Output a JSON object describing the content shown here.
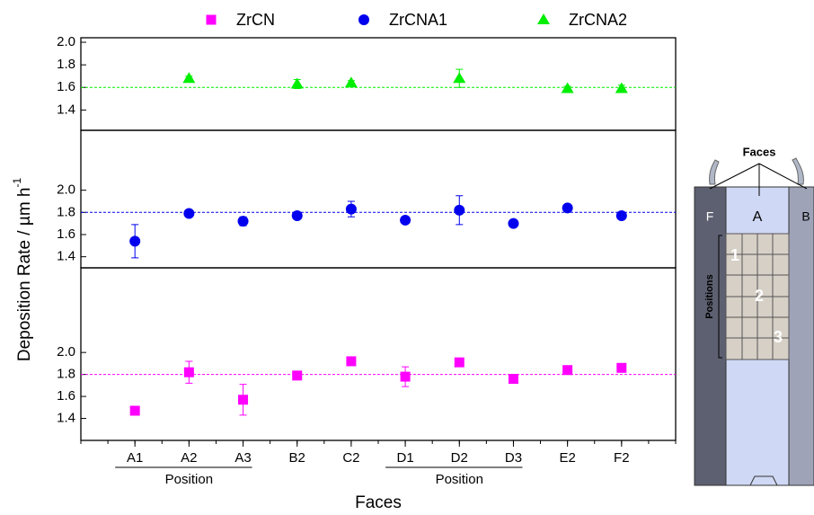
{
  "chart_data": [
    {
      "type": "scatter",
      "series": [
        {
          "name": "ZrCNA2",
          "color": "#00ee00",
          "marker": "triangle",
          "values": [
            null,
            1.68,
            null,
            1.63,
            1.64,
            null,
            1.68,
            null,
            1.59,
            1.59
          ],
          "errors": [
            null,
            0.02,
            null,
            0.04,
            0.02,
            null,
            0.08,
            null,
            0.02,
            0.03
          ]
        }
      ],
      "ylim": [
        1.22,
        2.04
      ],
      "yticks": [
        1.4,
        1.6,
        1.8,
        {
          "value": 2.0,
          "label": "2.0"
        }
      ],
      "reference_line": 1.6
    },
    {
      "type": "scatter",
      "series": [
        {
          "name": "ZrCNA1",
          "color": "#0000ee",
          "marker": "circle",
          "values": [
            1.54,
            1.79,
            1.72,
            1.77,
            1.83,
            1.73,
            1.82,
            1.7,
            1.84,
            1.77
          ],
          "errors": [
            0.15,
            0.02,
            0.04,
            0.02,
            0.07,
            0.02,
            0.13,
            0.02,
            0.02,
            0.02
          ]
        }
      ],
      "ylim": [
        1.3,
        2.54
      ],
      "yticks": [
        1.4,
        1.6,
        1.8,
        {
          "value": 2.0,
          "label": "2.0"
        }
      ],
      "reference_line": 1.8
    },
    {
      "type": "scatter",
      "series": [
        {
          "name": "ZrCN",
          "color": "#ff00ff",
          "marker": "square",
          "values": [
            1.47,
            1.82,
            1.57,
            1.79,
            1.92,
            1.78,
            1.91,
            1.76,
            1.84,
            1.86
          ],
          "errors": [
            0.04,
            0.1,
            0.14,
            0.02,
            0.02,
            0.09,
            0.02,
            0.04,
            0.02,
            0.02
          ]
        }
      ],
      "ylim": [
        1.2,
        2.77
      ],
      "yticks": [
        1.4,
        1.6,
        1.8,
        {
          "value": 2.0,
          "label": "2.0"
        }
      ],
      "reference_line": 1.8,
      "categories": [
        "A1",
        "A2",
        "A3",
        "B2",
        "C2",
        "D1",
        "D2",
        "D3",
        "E2",
        "F2"
      ],
      "group_labels": [
        "Position",
        "Position"
      ],
      "x_label": "Faces"
    }
  ],
  "y_label": {
    "text": "Deposition Rate / µm h",
    "superscript": "-1"
  },
  "diagram": {
    "title": "Faces",
    "faces": [
      "F",
      "A",
      "B"
    ],
    "positions_label": "Positions",
    "positions": [
      "1",
      "2",
      "3"
    ]
  }
}
